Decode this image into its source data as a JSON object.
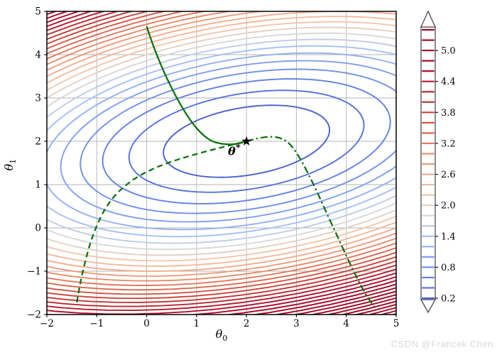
{
  "watermark": "CSDN @Francek Chen",
  "chart_data": {
    "type": "contour",
    "title": "",
    "xlabel_base": "θ",
    "xlabel_sub": "0",
    "ylabel_base": "θ",
    "ylabel_sub": "1",
    "xlim": [
      -2,
      5
    ],
    "ylim": [
      -2,
      5
    ],
    "xticks": [
      -2,
      -1,
      0,
      1,
      2,
      3,
      4,
      5
    ],
    "yticks": [
      -2,
      -1,
      0,
      1,
      2,
      3,
      4,
      5
    ],
    "grid": true,
    "grid_color": "#b3b3b3",
    "loss_surface": {
      "description": "f = a*(x-cx)^2 + b*(y-cy)^2 + 2h*(x-cx)*(y-cy); tilted elliptic bowl",
      "center": [
        2,
        2
      ],
      "a": 0.08,
      "b": 0.32,
      "h": -0.05
    },
    "contour_levels": {
      "min": 0.2,
      "step": 0.2,
      "drawn_max": 7.0
    },
    "colormap": {
      "name": "coolwarm",
      "stops": [
        [
          0.2,
          "#4961d2"
        ],
        [
          0.6,
          "#6180e4"
        ],
        [
          1.0,
          "#7f9ff1"
        ],
        [
          1.4,
          "#a4c0f9"
        ],
        [
          1.8,
          "#d8d8d8"
        ],
        [
          2.2,
          "#f5c6ab"
        ],
        [
          2.6,
          "#f3ab8b"
        ],
        [
          3.0,
          "#ea8a6a"
        ],
        [
          3.4,
          "#dd674e"
        ],
        [
          3.8,
          "#cc4338"
        ],
        [
          4.2,
          "#bd262f"
        ],
        [
          4.6,
          "#b20f2a"
        ],
        [
          5.0,
          "#aa0526"
        ],
        [
          5.4,
          "#a30421"
        ]
      ]
    },
    "optimum": {
      "point": [
        2,
        2
      ],
      "label_base": "θ",
      "label_sup": "*"
    },
    "trajectory_color": "#0e730e",
    "trajectories": [
      {
        "name": "trajectory-solid",
        "style": "solid",
        "points": [
          [
            0,
            4.65
          ],
          [
            0.12,
            4.25
          ],
          [
            0.28,
            3.78
          ],
          [
            0.45,
            3.35
          ],
          [
            0.62,
            2.97
          ],
          [
            0.8,
            2.62
          ],
          [
            0.98,
            2.33
          ],
          [
            1.15,
            2.13
          ],
          [
            1.32,
            2.0
          ],
          [
            1.5,
            1.945
          ],
          [
            1.68,
            1.93
          ],
          [
            1.84,
            1.95
          ],
          [
            2.0,
            2.0
          ]
        ]
      },
      {
        "name": "trajectory-dashed",
        "style": "dashed",
        "points": [
          [
            -1.4,
            -1.72
          ],
          [
            -1.33,
            -1.28
          ],
          [
            -1.24,
            -0.82
          ],
          [
            -1.13,
            -0.36
          ],
          [
            -1.0,
            0.05
          ],
          [
            -0.84,
            0.42
          ],
          [
            -0.64,
            0.74
          ],
          [
            -0.4,
            1.0
          ],
          [
            -0.12,
            1.22
          ],
          [
            0.2,
            1.4
          ],
          [
            0.55,
            1.55
          ],
          [
            0.92,
            1.68
          ],
          [
            1.3,
            1.8
          ],
          [
            1.65,
            1.9
          ],
          [
            2.0,
            2.0
          ]
        ]
      },
      {
        "name": "trajectory-dashdot",
        "style": "dashdot",
        "points": [
          [
            2.0,
            2.0
          ],
          [
            2.2,
            2.06
          ],
          [
            2.42,
            2.1
          ],
          [
            2.62,
            2.09
          ],
          [
            2.8,
            2.0
          ],
          [
            2.95,
            1.82
          ],
          [
            3.1,
            1.55
          ],
          [
            3.25,
            1.22
          ],
          [
            3.42,
            0.82
          ],
          [
            3.6,
            0.36
          ],
          [
            3.8,
            -0.14
          ],
          [
            4.0,
            -0.64
          ],
          [
            4.2,
            -1.12
          ],
          [
            4.4,
            -1.55
          ],
          [
            4.6,
            -1.88
          ]
        ]
      }
    ],
    "colorbar": {
      "ticks": [
        0.2,
        0.8,
        1.4,
        2.0,
        2.6,
        3.2,
        3.8,
        4.4,
        5.0
      ],
      "level_min": 0.2,
      "level_max": 5.4,
      "level_step": 0.2,
      "extend": "both"
    }
  }
}
